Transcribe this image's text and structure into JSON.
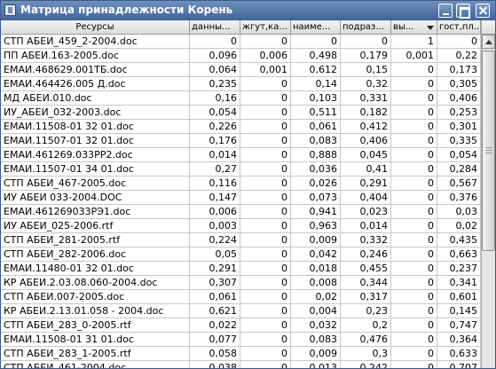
{
  "window": {
    "title": "Матрица принадлежности Корень"
  },
  "table": {
    "columns": [
      "Ресурсы",
      "данны...",
      "жгут,ка...",
      "наиме...",
      "подраз...",
      "вы...",
      "гост,пл..."
    ],
    "rows": [
      [
        "СТП АБЕИ_459_2-2004.doc",
        "0",
        "0",
        "0",
        "0",
        "1",
        "0"
      ],
      [
        "ПП АБЕИ.163-2005.doc",
        "0,096",
        "0,006",
        "0,498",
        "0,179",
        "0,001",
        "0,22"
      ],
      [
        "ЕМАИ.468629.001ТБ.doc",
        "0,064",
        "0,001",
        "0,612",
        "0,15",
        "0",
        "0,173"
      ],
      [
        "ЕМАИ.464426.005 Д.doc",
        "0,235",
        "0",
        "0,14",
        "0,32",
        "0",
        "0,305"
      ],
      [
        "МД АБЕИ.010.doc",
        "0,16",
        "0",
        "0,103",
        "0,331",
        "0",
        "0,406"
      ],
      [
        "ИУ_АБЕИ_032-2003.doc",
        "0,054",
        "0",
        "0,511",
        "0,182",
        "0",
        "0,253"
      ],
      [
        "ЕМАИ.11508-01 32 01.doc",
        "0,226",
        "0",
        "0,061",
        "0,412",
        "0",
        "0,301"
      ],
      [
        "ЕМАИ.11507-01 32 01.doc",
        "0,176",
        "0",
        "0,083",
        "0,406",
        "0",
        "0,335"
      ],
      [
        "ЕМАИ.461269.033РР2.doc",
        "0,014",
        "0",
        "0,888",
        "0,045",
        "0",
        "0,054"
      ],
      [
        "ЕМАИ.11507-01 34 01.doc",
        "0,27",
        "0",
        "0,036",
        "0,41",
        "0",
        "0,284"
      ],
      [
        "СТП АБЕИ_467-2005.doc",
        "0,116",
        "0",
        "0,026",
        "0,291",
        "0",
        "0,567"
      ],
      [
        "ИУ АБЕИ 033-2004.DOC",
        "0,147",
        "0",
        "0,073",
        "0,404",
        "0",
        "0,376"
      ],
      [
        "ЕМАИ.461269033РЭ1.doc",
        "0,006",
        "0",
        "0,941",
        "0,023",
        "0",
        "0,03"
      ],
      [
        "ИУ АБЕИ_025-2006.rtf",
        "0,003",
        "0",
        "0,963",
        "0,014",
        "0",
        "0,02"
      ],
      [
        "СТП АБЕИ_281-2005.rtf",
        "0,224",
        "0",
        "0,009",
        "0,332",
        "0",
        "0,435"
      ],
      [
        "СТП АБЕИ_282-2006.doc",
        "0,05",
        "0",
        "0,042",
        "0,246",
        "0",
        "0,663"
      ],
      [
        "ЕМАИ.11480-01 32 01.doc",
        "0,291",
        "0",
        "0,018",
        "0,455",
        "0",
        "0,237"
      ],
      [
        "КР АБЕИ.2.03.08.060-2004.doc",
        "0,307",
        "0",
        "0,008",
        "0,344",
        "0",
        "0,341"
      ],
      [
        "СТП АБЕИ.007-2005.doc",
        "0,061",
        "0",
        "0,02",
        "0,317",
        "0",
        "0,601"
      ],
      [
        "КР АБЕИ.2.13.01.058 - 2004.doc",
        "0,621",
        "0",
        "0,004",
        "0,23",
        "0",
        "0,145"
      ],
      [
        "СТП АБЕИ_283_0-2005.rtf",
        "0,022",
        "0",
        "0,032",
        "0,2",
        "0",
        "0,747"
      ],
      [
        "ЕМАИ.11508-01 31 01.doc",
        "0,077",
        "0",
        "0,083",
        "0,476",
        "0",
        "0,364"
      ],
      [
        "СТП АБЕИ_283_1-2005.rtf",
        "0,058",
        "0",
        "0,009",
        "0,3",
        "0",
        "0,633"
      ],
      [
        "СТП АБЕИ_461-2004.doc",
        "0,038",
        "0",
        "0,013",
        "0,242",
        "0",
        "0,707"
      ]
    ]
  }
}
